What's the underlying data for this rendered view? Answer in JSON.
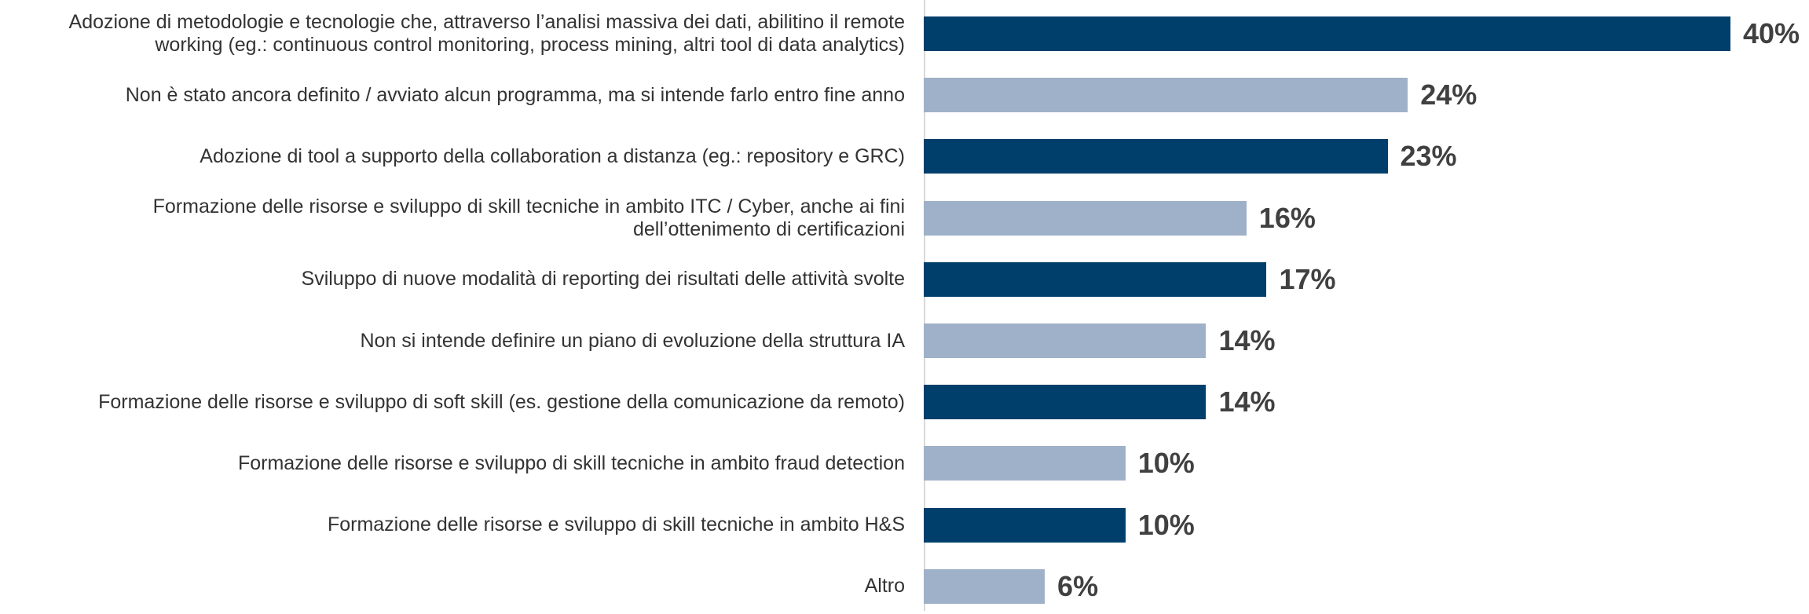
{
  "chart_data": {
    "type": "hbar",
    "categories": [
      "Adozione di metodologie e tecnologie che, attraverso l’analisi massiva dei dati, abilitino il remote\nworking (eg.: continuous control monitoring, process mining, altri tool di data analytics)",
      "Non è stato ancora definito / avviato alcun programma, ma si intende farlo entro fine anno",
      "Adozione di tool a supporto della collaboration a distanza (eg.: repository e GRC)",
      "Formazione delle risorse e sviluppo di skill tecniche in ambito ITC / Cyber, anche ai fini\ndell’ottenimento di certificazioni",
      "Sviluppo di nuove modalità di reporting dei risultati delle attività svolte",
      "Non si intende definire un piano di evoluzione della struttura IA",
      "Formazione delle risorse e sviluppo di soft skill (es. gestione della comunicazione da remoto)",
      "Formazione delle risorse e sviluppo di skill tecniche in ambito fraud detection",
      "Formazione delle risorse e sviluppo di skill tecniche in ambito H&S",
      "Altro"
    ],
    "values": [
      40,
      24,
      23,
      16,
      17,
      14,
      14,
      10,
      10,
      6
    ],
    "value_labels": [
      "40%",
      "24%",
      "23%",
      "16%",
      "17%",
      "14%",
      "14%",
      "10%",
      "10%",
      "6%"
    ],
    "colors": [
      "#003f6b",
      "#9fb1c8",
      "#003f6b",
      "#9fb1c8",
      "#003f6b",
      "#9fb1c8",
      "#003f6b",
      "#9fb1c8",
      "#003f6b",
      "#9fb1c8"
    ]
  }
}
